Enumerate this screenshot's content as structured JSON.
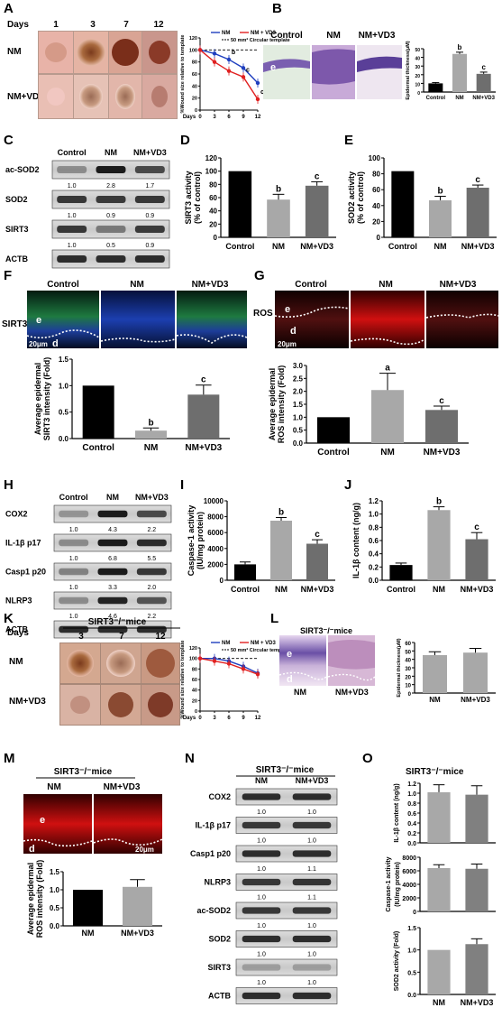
{
  "panels": {
    "A": {
      "letter": "A",
      "days_label": "Days",
      "days": [
        "1",
        "3",
        "7",
        "12"
      ],
      "rows": [
        "NM",
        "NM+VD3"
      ],
      "legend": [
        "NM",
        "NM + VD3"
      ],
      "note": "50 mm² Circular template",
      "ylabel": "%Wound size relative to template",
      "xlabel": "Days",
      "xticks": [
        "0",
        "3",
        "6",
        "9",
        "12"
      ],
      "yticks": [
        "0",
        "20",
        "40",
        "60",
        "80",
        "100",
        "120"
      ],
      "sig": [
        "b",
        "c",
        "c"
      ],
      "colors": {
        "nm": "#1f3fbf",
        "vd3": "#e02020"
      }
    },
    "B": {
      "letter": "B",
      "cols": [
        "Control",
        "NM",
        "NM+VD3"
      ],
      "e": "e",
      "ylabel": "Epidermal thickness(μM)",
      "categories": [
        "Control",
        "NM",
        "NM+VD3"
      ],
      "sig": [
        "",
        "b",
        "c"
      ],
      "yticks": [
        "0",
        "10",
        "20",
        "30",
        "40",
        "50"
      ]
    },
    "C": {
      "letter": "C",
      "cols": [
        "Control",
        "NM",
        "NM+VD3"
      ],
      "rows": [
        "ac-SOD2",
        "SOD2",
        "SIRT3",
        "ACTB"
      ],
      "quant": [
        [
          "1.0",
          "2.8",
          "1.7"
        ],
        [
          "1.0",
          "0.9",
          "0.9"
        ],
        [
          "1.0",
          "0.5",
          "0.9"
        ]
      ]
    },
    "D": {
      "letter": "D",
      "ylabel": "SIRT3 activity (% of control)",
      "categories": [
        "Control",
        "NM",
        "NM+VD3"
      ],
      "sig": [
        "",
        "b",
        "c"
      ],
      "yticks": [
        "0",
        "20",
        "40",
        "60",
        "80",
        "100",
        "120"
      ]
    },
    "E": {
      "letter": "E",
      "ylabel": "SOD2 activity (% of control)",
      "categories": [
        "Control",
        "NM",
        "NM+VD3"
      ],
      "sig": [
        "",
        "b",
        "c"
      ],
      "yticks": [
        "0",
        "20",
        "40",
        "60",
        "80",
        "100"
      ]
    },
    "F": {
      "letter": "F",
      "cols": [
        "Control",
        "NM",
        "NM+VD3"
      ],
      "side": "SIRT3",
      "e": "e",
      "d": "d",
      "scale": "20μm",
      "ylabel": "Average epidermal SIRT3 intensity (Fold)",
      "categories": [
        "Control",
        "NM",
        "NM+VD3"
      ],
      "sig": [
        "",
        "b",
        "c"
      ],
      "yticks": [
        "0.0",
        "0.5",
        "1.0",
        "1.5"
      ]
    },
    "G": {
      "letter": "G",
      "cols": [
        "Control",
        "NM",
        "NM+VD3"
      ],
      "side": "ROS",
      "e": "e",
      "d": "d",
      "scale": "20μm",
      "ylabel": "Average epidermal ROS intensity (Fold)",
      "categories": [
        "Control",
        "NM",
        "NM+VD3"
      ],
      "sig": [
        "",
        "a",
        "c"
      ],
      "yticks": [
        "0.0",
        "0.5",
        "1.0",
        "1.5",
        "2.0",
        "2.5",
        "3.0"
      ]
    },
    "H": {
      "letter": "H",
      "cols": [
        "Control",
        "NM",
        "NM+VD3"
      ],
      "rows": [
        "COX2",
        "IL-1β p17",
        "Casp1 p20",
        "NLRP3",
        "ACTB"
      ],
      "quant": [
        [
          "1.0",
          "4.3",
          "2.2"
        ],
        [
          "1.0",
          "6.8",
          "5.5"
        ],
        [
          "1.0",
          "3.3",
          "2.0"
        ],
        [
          "1.0",
          "4.6",
          "2.2"
        ]
      ]
    },
    "I": {
      "letter": "I",
      "ylabel": "Caspase-1 activity (IU/mg protein)",
      "categories": [
        "Control",
        "NM",
        "NM+VD3"
      ],
      "sig": [
        "",
        "b",
        "c"
      ],
      "yticks": [
        "0",
        "2000",
        "4000",
        "6000",
        "8000",
        "10000"
      ]
    },
    "J": {
      "letter": "J",
      "ylabel": "IL-1β content (ng/g)",
      "categories": [
        "Control",
        "NM",
        "NM+VD3"
      ],
      "sig": [
        "",
        "b",
        "c"
      ],
      "yticks": [
        "0.0",
        "0.2",
        "0.4",
        "0.6",
        "0.8",
        "1.0",
        "1.2"
      ]
    },
    "K": {
      "letter": "K",
      "days_label": "Days",
      "title": "SIRT3⁻/⁻mice",
      "days": [
        "3",
        "7",
        "12"
      ],
      "rows": [
        "NM",
        "NM+VD3"
      ],
      "legend": [
        "NM",
        "NM + VD3"
      ],
      "note": "50 mm² Circular template",
      "ylabel": "%Wound size relative to template",
      "xlabel": "Days",
      "xticks": [
        "0",
        "3",
        "6",
        "9",
        "12"
      ],
      "yticks": [
        "0",
        "20",
        "40",
        "60",
        "80",
        "100",
        "120"
      ]
    },
    "L": {
      "letter": "L",
      "title": "SIRT3⁻/⁻mice",
      "cols": [
        "NM",
        "NM+VD3"
      ],
      "e": "e",
      "d": "d",
      "ylabel": "Epidermal thickness(μM)",
      "categories": [
        "NM",
        "NM+VD3"
      ],
      "yticks": [
        "0",
        "10",
        "20",
        "30",
        "40",
        "50",
        "60"
      ]
    },
    "M": {
      "letter": "M",
      "title": "SIRT3⁻/⁻mice",
      "cols": [
        "NM",
        "NM+VD3"
      ],
      "e": "e",
      "d": "d",
      "scale": "20μm",
      "ylabel": "Average epidermal ROS intensity (Fold)",
      "categories": [
        "NM",
        "NM+VD3"
      ],
      "yticks": [
        "0.0",
        "0.5",
        "1.0",
        "1.5"
      ]
    },
    "N": {
      "letter": "N",
      "title": "SIRT3⁻/⁻mice",
      "cols": [
        "NM",
        "NM+VD3"
      ],
      "rows": [
        "COX2",
        "IL-1β p17",
        "Casp1 p20",
        "NLRP3",
        "ac-SOD2",
        "SOD2",
        "SIRT3",
        "ACTB"
      ],
      "quant": [
        [
          "1.0",
          "1.0"
        ],
        [
          "1.0",
          "1.0"
        ],
        [
          "1.0",
          "1.1"
        ],
        [
          "1.0",
          "1.1"
        ],
        [
          "1.0",
          "1.0"
        ],
        [
          "1.0",
          "1.0"
        ],
        [
          "1.0",
          "1.0"
        ]
      ]
    },
    "O": {
      "letter": "O",
      "title": "SIRT3⁻/⁻mice",
      "categories": [
        "NM",
        "NM+VD3"
      ],
      "ylabels": [
        "IL-1β content (ng/g)",
        "Caspase-1 activity (IU/mg protein)",
        "SOD2 activity (Fold)"
      ],
      "yticks": [
        [
          "0.0",
          "0.2",
          "0.4",
          "0.6",
          "0.8",
          "1.0",
          "1.2"
        ],
        [
          "0",
          "2000",
          "4000",
          "6000",
          "8000"
        ],
        [
          "0.0",
          "0.5",
          "1.0",
          "1.5"
        ]
      ]
    }
  },
  "chart_data": [
    {
      "type": "line",
      "id": "A",
      "x": [
        0,
        3,
        6,
        9,
        12
      ],
      "series": [
        {
          "name": "NM",
          "values": [
            100,
            94,
            84,
            70,
            45
          ]
        },
        {
          "name": "NM + VD3",
          "values": [
            100,
            80,
            65,
            55,
            18
          ]
        }
      ],
      "xlabel": "Days",
      "ylabel": "%Wound size relative to template",
      "ylim": [
        0,
        120
      ],
      "grid": false,
      "legend": "top-right"
    },
    {
      "type": "bar",
      "id": "B",
      "categories": [
        "Control",
        "NM",
        "NM+VD3"
      ],
      "values": [
        10,
        44,
        21
      ],
      "errors": [
        1,
        2,
        2
      ],
      "ylabel": "Epidermal thickness(μM)",
      "ylim": [
        0,
        50
      ]
    },
    {
      "type": "bar",
      "id": "D",
      "categories": [
        "Control",
        "NM",
        "NM+VD3"
      ],
      "values": [
        100,
        57,
        78
      ],
      "errors": [
        0,
        8,
        6
      ],
      "ylabel": "SIRT3 activity (% of control)",
      "ylim": [
        0,
        120
      ]
    },
    {
      "type": "bar",
      "id": "E",
      "categories": [
        "Control",
        "NM",
        "NM+VD3"
      ],
      "values": [
        100,
        56,
        75
      ],
      "errors": [
        0,
        6,
        4
      ],
      "ylabel": "SOD2 activity (% of control)",
      "ylim": [
        0,
        120
      ]
    },
    {
      "type": "bar",
      "id": "F",
      "categories": [
        "Control",
        "NM",
        "NM+VD3"
      ],
      "values": [
        1.0,
        0.15,
        0.83
      ],
      "errors": [
        0,
        0.05,
        0.18
      ],
      "ylabel": "Average epidermal SIRT3 intensity (Fold)",
      "ylim": [
        0,
        1.5
      ]
    },
    {
      "type": "bar",
      "id": "G",
      "categories": [
        "Control",
        "NM",
        "NM+VD3"
      ],
      "values": [
        1.0,
        2.05,
        1.28
      ],
      "errors": [
        0,
        0.65,
        0.15
      ],
      "ylabel": "Average epidermal ROS intensity (Fold)",
      "ylim": [
        0,
        3.0
      ]
    },
    {
      "type": "bar",
      "id": "I",
      "categories": [
        "Control",
        "NM",
        "NM+VD3"
      ],
      "values": [
        2000,
        7500,
        4600
      ],
      "errors": [
        300,
        400,
        500
      ],
      "ylabel": "Caspase-1 activity (IU/mg protein)",
      "ylim": [
        0,
        10000
      ]
    },
    {
      "type": "bar",
      "id": "J",
      "categories": [
        "Control",
        "NM",
        "NM+VD3"
      ],
      "values": [
        0.23,
        1.06,
        0.62
      ],
      "errors": [
        0.03,
        0.05,
        0.1
      ],
      "ylabel": "IL-1β content (ng/g)",
      "ylim": [
        0,
        1.2
      ]
    },
    {
      "type": "line",
      "id": "K",
      "x": [
        0,
        3,
        6,
        9,
        12
      ],
      "series": [
        {
          "name": "NM",
          "values": [
            100,
            100,
            95,
            85,
            72
          ]
        },
        {
          "name": "NM + VD3",
          "values": [
            100,
            95,
            90,
            80,
            70
          ]
        }
      ],
      "xlabel": "Days",
      "ylabel": "%Wound size relative to template",
      "ylim": [
        0,
        120
      ],
      "legend": "top-right"
    },
    {
      "type": "bar",
      "id": "L",
      "categories": [
        "NM",
        "NM+VD3"
      ],
      "values": [
        45,
        48
      ],
      "errors": [
        4,
        5
      ],
      "ylabel": "Epidermal thickness(μM)",
      "ylim": [
        0,
        60
      ]
    },
    {
      "type": "bar",
      "id": "M",
      "categories": [
        "NM",
        "NM+VD3"
      ],
      "values": [
        1.0,
        1.08
      ],
      "errors": [
        0,
        0.2
      ],
      "ylabel": "Average epidermal ROS intensity (Fold)",
      "ylim": [
        0,
        1.5
      ]
    },
    {
      "type": "bar",
      "id": "O1",
      "categories": [
        "NM",
        "NM+VD3"
      ],
      "values": [
        1.02,
        0.97
      ],
      "errors": [
        0.15,
        0.18
      ],
      "ylabel": "IL-1β content (ng/g)",
      "ylim": [
        0,
        1.2
      ]
    },
    {
      "type": "bar",
      "id": "O2",
      "categories": [
        "NM",
        "NM+VD3"
      ],
      "values": [
        6400,
        6300
      ],
      "errors": [
        500,
        700
      ],
      "ylabel": "Caspase-1 activity (IU/mg protein)",
      "ylim": [
        0,
        8000
      ]
    },
    {
      "type": "bar",
      "id": "O3",
      "categories": [
        "NM",
        "NM+VD3"
      ],
      "values": [
        1.0,
        1.13
      ],
      "errors": [
        0,
        0.12
      ],
      "ylabel": "SOD2 activity (Fold)",
      "ylim": [
        0,
        1.5
      ]
    }
  ]
}
